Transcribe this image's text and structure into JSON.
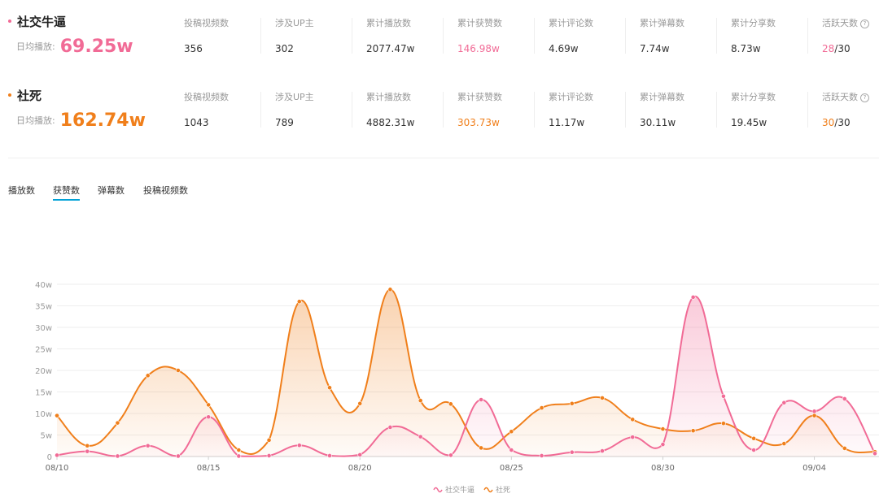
{
  "rows": [
    {
      "name": "社交牛逼",
      "color": "#f16b96",
      "avg_label": "日均播放:",
      "avg_value": "69.25w",
      "stats": [
        {
          "label": "投稿视频数",
          "value": "356"
        },
        {
          "label": "涉及UP主",
          "value": "302"
        },
        {
          "label": "累计播放数",
          "value": "2077.47w"
        },
        {
          "label": "累计获赞数",
          "value": "146.98w",
          "highlight": true
        },
        {
          "label": "累计评论数",
          "value": "4.69w"
        },
        {
          "label": "累计弹幕数",
          "value": "7.74w"
        },
        {
          "label": "累计分享数",
          "value": "8.73w"
        },
        {
          "label": "活跃天数",
          "value_hl": "28",
          "value_rest": "/30",
          "help": "?"
        }
      ]
    },
    {
      "name": "社死",
      "color": "#f07f1b",
      "avg_label": "日均播放:",
      "avg_value": "162.74w",
      "stats": [
        {
          "label": "投稿视频数",
          "value": "1043"
        },
        {
          "label": "涉及UP主",
          "value": "789"
        },
        {
          "label": "累计播放数",
          "value": "4882.31w"
        },
        {
          "label": "累计获赞数",
          "value": "303.73w",
          "highlight": true
        },
        {
          "label": "累计评论数",
          "value": "11.17w"
        },
        {
          "label": "累计弹幕数",
          "value": "30.11w"
        },
        {
          "label": "累计分享数",
          "value": "19.45w"
        },
        {
          "label": "活跃天数",
          "value_hl": "30",
          "value_rest": "/30",
          "help": "?"
        }
      ]
    }
  ],
  "tabs": [
    {
      "label": "播放数"
    },
    {
      "label": "获赞数",
      "active": true
    },
    {
      "label": "弹幕数"
    },
    {
      "label": "投稿视频数"
    }
  ],
  "chart_data": {
    "type": "area",
    "x_labels": [
      "08/10",
      "08/11",
      "08/12",
      "08/13",
      "08/14",
      "08/15",
      "08/16",
      "08/17",
      "08/18",
      "08/19",
      "08/20",
      "08/21",
      "08/22",
      "08/23",
      "08/24",
      "08/25",
      "08/26",
      "08/27",
      "08/28",
      "08/29",
      "08/30",
      "08/31",
      "09/01",
      "09/02",
      "09/03",
      "09/04",
      "09/05",
      "09/06"
    ],
    "tick_labels": [
      "08/10",
      "08/15",
      "08/20",
      "08/25",
      "08/30",
      "09/04"
    ],
    "y_ticks": [
      "0",
      "5w",
      "10w",
      "15w",
      "20w",
      "25w",
      "30w",
      "35w",
      "40w"
    ],
    "ylim": [
      0,
      40
    ],
    "series": [
      {
        "name": "社交牛逼",
        "color": "#f16b96",
        "values": [
          0.3,
          1.2,
          0.1,
          2.5,
          0.1,
          9.2,
          0.1,
          0.2,
          2.6,
          0.2,
          0.4,
          6.8,
          4.6,
          0.3,
          13.2,
          1.5,
          0.2,
          1.0,
          1.3,
          4.5,
          2.8,
          37,
          14,
          1.5,
          12.5,
          10.5,
          13.4,
          0.7
        ]
      },
      {
        "name": "社死",
        "color": "#f07f1b",
        "values": [
          9.5,
          2.5,
          7.8,
          18.8,
          20,
          12,
          1.5,
          3.8,
          36,
          16,
          12.3,
          38.8,
          13,
          12.2,
          2,
          5.8,
          11.3,
          12.3,
          13.6,
          8.6,
          6.4,
          6.0,
          7.7,
          4.2,
          3.0,
          9.5,
          1.9,
          1.1
        ]
      }
    ],
    "legend_position": "bottom-center"
  }
}
